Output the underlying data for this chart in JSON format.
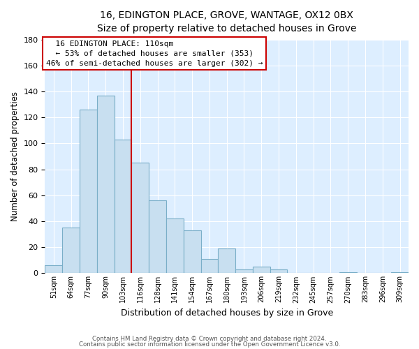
{
  "title": "16, EDINGTON PLACE, GROVE, WANTAGE, OX12 0BX",
  "subtitle": "Size of property relative to detached houses in Grove",
  "xlabel": "Distribution of detached houses by size in Grove",
  "ylabel": "Number of detached properties",
  "bar_color": "#c8dff0",
  "bar_edge_color": "#7aaec8",
  "categories": [
    "51sqm",
    "64sqm",
    "77sqm",
    "90sqm",
    "103sqm",
    "116sqm",
    "128sqm",
    "141sqm",
    "154sqm",
    "167sqm",
    "180sqm",
    "193sqm",
    "206sqm",
    "219sqm",
    "232sqm",
    "245sqm",
    "257sqm",
    "270sqm",
    "283sqm",
    "296sqm",
    "309sqm"
  ],
  "values": [
    6,
    35,
    126,
    137,
    103,
    85,
    56,
    42,
    33,
    11,
    19,
    3,
    5,
    3,
    0,
    0,
    0,
    1,
    0,
    0,
    1
  ],
  "vline_color": "#cc0000",
  "annotation_title": "16 EDINGTON PLACE: 110sqm",
  "annotation_line1": "← 53% of detached houses are smaller (353)",
  "annotation_line2": "46% of semi-detached houses are larger (302) →",
  "box_edge_color": "#cc0000",
  "ylim": [
    0,
    180
  ],
  "yticks": [
    0,
    20,
    40,
    60,
    80,
    100,
    120,
    140,
    160,
    180
  ],
  "footnote1": "Contains HM Land Registry data © Crown copyright and database right 2024.",
  "footnote2": "Contains public sector information licensed under the Open Government Licence v3.0.",
  "bg_color": "#ddeeff",
  "grid_color": "#ffffff",
  "title_fontsize": 10,
  "subtitle_fontsize": 9
}
